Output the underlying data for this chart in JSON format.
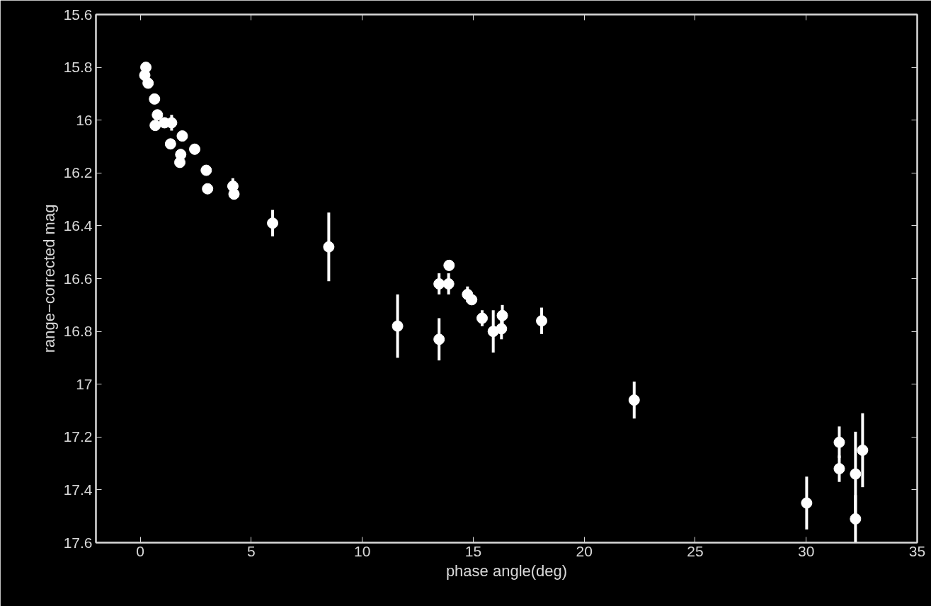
{
  "chart_data": {
    "type": "scatter",
    "xlabel": "phase angle(deg)",
    "ylabel": "range−corrected mag",
    "xlim": [
      -2,
      35
    ],
    "ylim": [
      17.6,
      15.6
    ],
    "xticks": [
      0,
      5,
      10,
      15,
      20,
      25,
      30,
      35
    ],
    "yticks": [
      15.6,
      15.8,
      {
        "value": 16,
        "label": "16"
      },
      16.2,
      16.4,
      16.6,
      16.8,
      {
        "value": 17,
        "label": "17"
      },
      17.2,
      17.4,
      17.6
    ],
    "grid": false,
    "marker": "circle",
    "series": [
      {
        "color": "#ffffff",
        "x": [
          0.25,
          0.2,
          0.35,
          0.64,
          0.77,
          0.67,
          1.09,
          1.41,
          1.89,
          1.36,
          2.45,
          1.82,
          1.78,
          2.97,
          3.03,
          4.17,
          4.22,
          5.96,
          8.49,
          11.59,
          13.46,
          13.46,
          13.89,
          13.91,
          14.74,
          14.93,
          15.4,
          15.9,
          16.31,
          16.27,
          18.08,
          22.25,
          30.02,
          31.49,
          31.49,
          32.22,
          32.22,
          32.54
        ],
        "values": [
          15.8,
          15.83,
          15.86,
          15.92,
          15.98,
          16.02,
          16.01,
          16.01,
          16.06,
          16.09,
          16.11,
          16.13,
          16.16,
          16.19,
          16.26,
          16.25,
          16.28,
          16.39,
          16.48,
          16.78,
          16.83,
          16.62,
          16.62,
          16.55,
          16.66,
          16.68,
          16.75,
          16.8,
          16.74,
          16.79,
          16.76,
          17.06,
          17.45,
          17.22,
          17.32,
          17.34,
          17.51,
          17.25
        ],
        "errors": [
          null,
          null,
          null,
          null,
          null,
          null,
          0.02,
          0.03,
          null,
          null,
          0.02,
          0.02,
          null,
          null,
          null,
          0.03,
          null,
          0.05,
          0.13,
          0.12,
          0.08,
          0.04,
          0.04,
          0.02,
          0.03,
          null,
          0.03,
          0.08,
          0.04,
          0.04,
          0.05,
          0.07,
          0.1,
          0.06,
          0.05,
          0.16,
          0.09,
          0.14
        ]
      }
    ]
  }
}
